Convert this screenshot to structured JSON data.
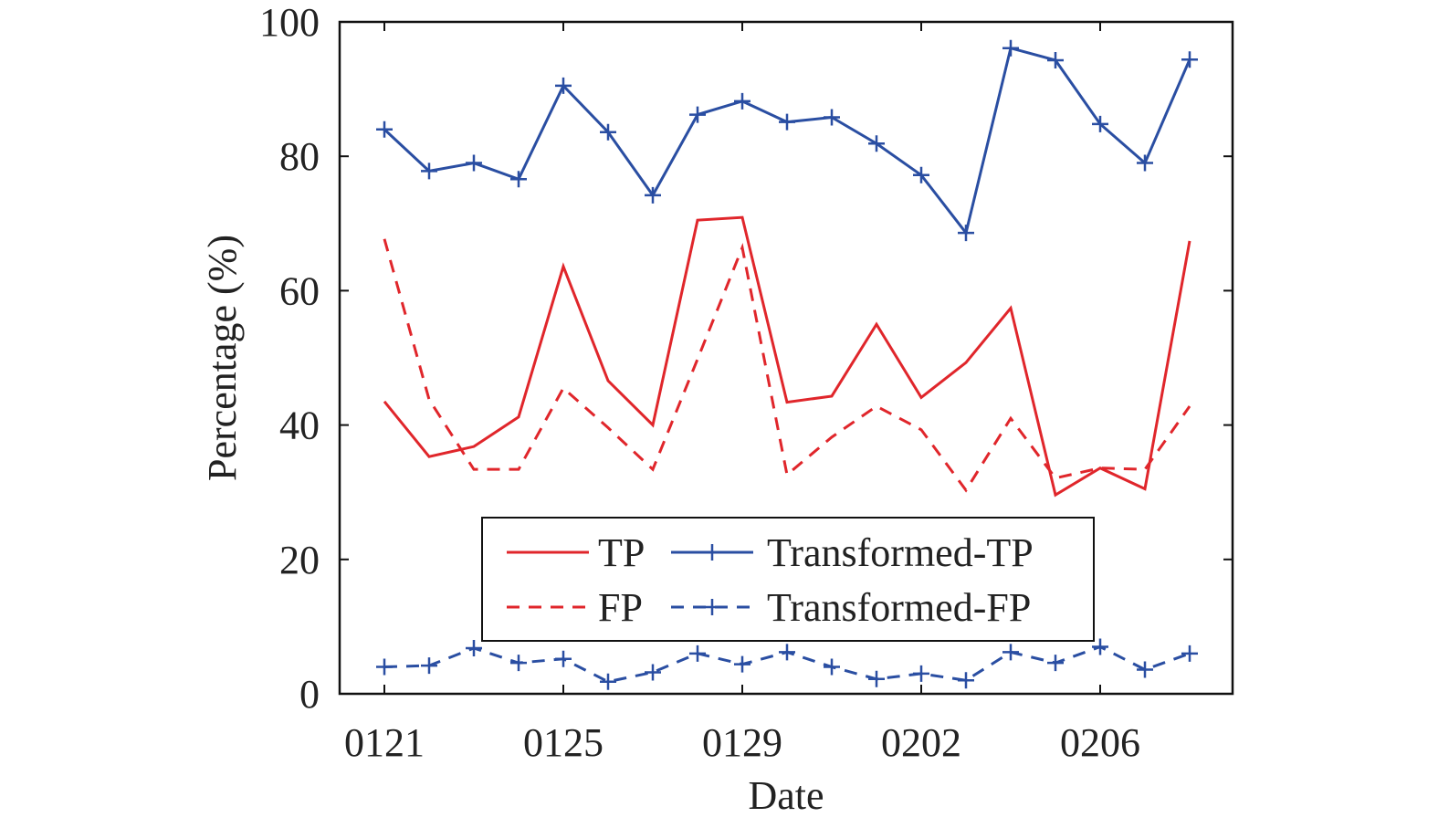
{
  "chart_data": {
    "type": "line",
    "xlabel": "Date",
    "ylabel": "Percentage (%)",
    "x_tick_labels": [
      "0121",
      "0125",
      "0129",
      "0202",
      "0206"
    ],
    "y_tick_labels": [
      "0",
      "20",
      "40",
      "60",
      "80",
      "100"
    ],
    "x_categories": [
      "0121",
      "0122",
      "0123",
      "0124",
      "0125",
      "0126",
      "0127",
      "0128",
      "0129",
      "0130",
      "0131",
      "0201",
      "0202",
      "0203",
      "0204",
      "0205",
      "0206",
      "0207",
      "0208"
    ],
    "ylim": [
      0,
      100
    ],
    "grid": false,
    "legend_position": "lower-center",
    "series": [
      {
        "name": "TP",
        "color": "#e0262b",
        "style": "solid",
        "marker": "none",
        "values": [
          43.5,
          35.3,
          36.8,
          41.2,
          63.6,
          46.6,
          40.0,
          70.5,
          70.9,
          43.4,
          44.3,
          55.0,
          44.1,
          49.3,
          57.4,
          29.6,
          33.6,
          30.5,
          67.4
        ]
      },
      {
        "name": "FP",
        "color": "#e0262b",
        "style": "dashed",
        "marker": "none",
        "values": [
          67.7,
          43.8,
          33.4,
          33.4,
          45.5,
          39.6,
          33.4,
          49.8,
          66.4,
          32.6,
          38.2,
          42.8,
          39.3,
          30.3,
          41.0,
          32.1,
          33.6,
          33.4,
          42.8
        ]
      },
      {
        "name": "Transformed-TP",
        "color": "#2a4ea2",
        "style": "solid",
        "marker": "plus",
        "values": [
          84.0,
          77.8,
          79.0,
          76.6,
          90.5,
          83.6,
          74.2,
          86.2,
          88.2,
          85.1,
          85.8,
          81.9,
          77.2,
          68.6,
          96.1,
          94.3,
          84.8,
          79.0,
          94.4
        ]
      },
      {
        "name": "Transformed-FP",
        "color": "#2a4ea2",
        "style": "dashed",
        "marker": "plus",
        "values": [
          4.0,
          4.2,
          6.8,
          4.6,
          5.2,
          1.8,
          3.2,
          6.0,
          4.4,
          6.2,
          4.0,
          2.2,
          3.0,
          2.0,
          6.2,
          4.6,
          7.0,
          3.6,
          6.0
        ]
      }
    ]
  }
}
